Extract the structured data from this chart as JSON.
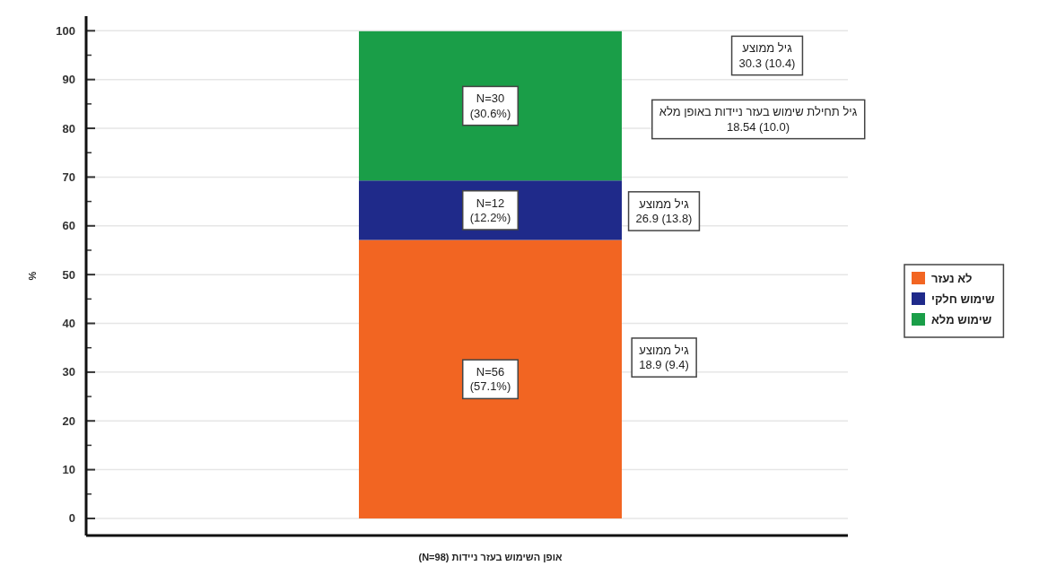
{
  "chart_data": {
    "type": "bar",
    "stacked": true,
    "xlabel": "אופן השימוש בעזר ניידות (N=98)",
    "ylabel": "%",
    "categories": [
      null
    ],
    "series": [
      {
        "name": "לא נעזר",
        "color": "#f26522",
        "values": [
          57.1
        ],
        "value_labels": [
          "N=56\n(57.1%)"
        ]
      },
      {
        "name": "שימוש חלקי",
        "color": "#1f2a8a",
        "values": [
          12.2
        ],
        "value_labels": [
          "N=12\n(12.2%)"
        ]
      },
      {
        "name": "שימוש מלא",
        "color": "#1a9e48",
        "values": [
          30.6
        ],
        "value_labels": [
          "N=30\n(30.6%)"
        ]
      }
    ],
    "annotations": [
      "גיל ממוצע\n30.3 (10.4)",
      "גיל תחילת שימוש בעזר ניידות באופן מלא\n18.54 (10.0)",
      "גיל ממוצע\n26.9 (13.8)",
      "גיל ממוצע\n18.9 (9.4)"
    ],
    "ylim": [
      -3.5,
      103
    ],
    "yticks": [
      0,
      10,
      20,
      30,
      40,
      50,
      60,
      70,
      80,
      90,
      100
    ],
    "grid": "y",
    "legend": "right"
  }
}
